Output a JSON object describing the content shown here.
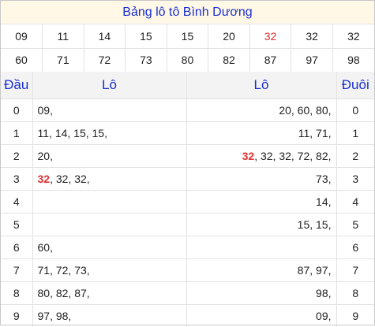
{
  "title": "Bảng lô tô Bình Dương",
  "numbers_row1": [
    "09",
    "11",
    "14",
    "15",
    "15",
    "20",
    "32",
    "32",
    "32"
  ],
  "numbers_row2": [
    "60",
    "71",
    "72",
    "73",
    "80",
    "82",
    "87",
    "97",
    "98"
  ],
  "highlight_color": "#e03030",
  "accent_color": "#1a2fd0",
  "headers": {
    "dau": "Đầu",
    "lo_left": "Lô",
    "lo_right": "Lô",
    "duoi": "Đuôi"
  },
  "rows": [
    {
      "dau": "0",
      "lo_left_hl": "",
      "lo_left": "09,",
      "lo_right_hl": "",
      "lo_right": "20, 60, 80,",
      "duoi": "0"
    },
    {
      "dau": "1",
      "lo_left_hl": "",
      "lo_left": "11, 14, 15, 15,",
      "lo_right_hl": "",
      "lo_right": "11, 71,",
      "duoi": "1"
    },
    {
      "dau": "2",
      "lo_left_hl": "",
      "lo_left": "20,",
      "lo_right_hl": "32",
      "lo_right": ", 32, 32, 72, 82,",
      "duoi": "2"
    },
    {
      "dau": "3",
      "lo_left_hl": "32",
      "lo_left": ", 32, 32,",
      "lo_right_hl": "",
      "lo_right": "73,",
      "duoi": "3"
    },
    {
      "dau": "4",
      "lo_left_hl": "",
      "lo_left": "",
      "lo_right_hl": "",
      "lo_right": "14,",
      "duoi": "4"
    },
    {
      "dau": "5",
      "lo_left_hl": "",
      "lo_left": "",
      "lo_right_hl": "",
      "lo_right": "15, 15,",
      "duoi": "5"
    },
    {
      "dau": "6",
      "lo_left_hl": "",
      "lo_left": "60,",
      "lo_right_hl": "",
      "lo_right": "",
      "duoi": "6"
    },
    {
      "dau": "7",
      "lo_left_hl": "",
      "lo_left": "71, 72, 73,",
      "lo_right_hl": "",
      "lo_right": "87, 97,",
      "duoi": "7"
    },
    {
      "dau": "8",
      "lo_left_hl": "",
      "lo_left": "80, 82, 87,",
      "lo_right_hl": "",
      "lo_right": "98,",
      "duoi": "8"
    },
    {
      "dau": "9",
      "lo_left_hl": "",
      "lo_left": "97, 98,",
      "lo_right_hl": "",
      "lo_right": "09,",
      "duoi": "9"
    }
  ]
}
